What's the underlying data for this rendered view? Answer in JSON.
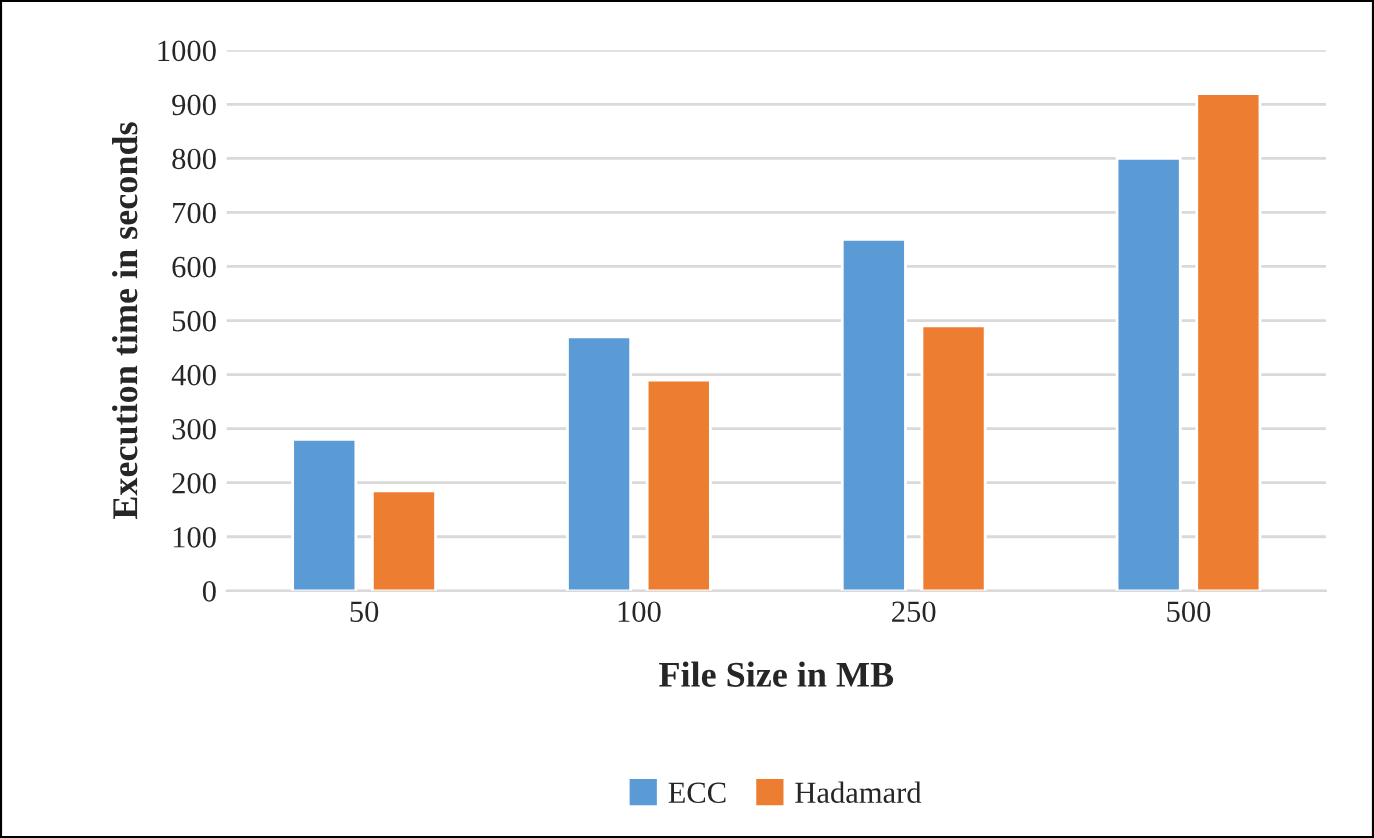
{
  "chart_data": {
    "type": "bar",
    "xlabel": "File Size in MB",
    "ylabel": "Execution time in seconds",
    "categories": [
      "50",
      "100",
      "250",
      "500"
    ],
    "series": [
      {
        "name": "ECC",
        "color": "#5b9bd5",
        "values": [
          280,
          470,
          650,
          800
        ]
      },
      {
        "name": "Hadamard",
        "color": "#ed7d31",
        "values": [
          185,
          390,
          490,
          920
        ]
      }
    ],
    "ylim": [
      0,
      1000
    ],
    "yticks": [
      0,
      100,
      200,
      300,
      400,
      500,
      600,
      700,
      800,
      900,
      1000
    ],
    "grid": "y",
    "legend": "bottom"
  }
}
